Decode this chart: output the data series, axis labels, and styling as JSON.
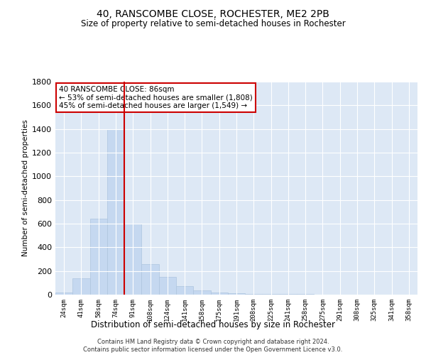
{
  "title1": "40, RANSCOMBE CLOSE, ROCHESTER, ME2 2PB",
  "title2": "Size of property relative to semi-detached houses in Rochester",
  "xlabel": "Distribution of semi-detached houses by size in Rochester",
  "ylabel": "Number of semi-detached properties",
  "categories": [
    "24sqm",
    "41sqm",
    "58sqm",
    "74sqm",
    "91sqm",
    "108sqm",
    "124sqm",
    "141sqm",
    "158sqm",
    "175sqm",
    "191sqm",
    "208sqm",
    "225sqm",
    "241sqm",
    "258sqm",
    "275sqm",
    "291sqm",
    "308sqm",
    "325sqm",
    "341sqm",
    "358sqm"
  ],
  "values": [
    20,
    140,
    640,
    1400,
    600,
    260,
    150,
    70,
    35,
    20,
    15,
    5,
    5,
    5,
    5,
    2,
    2,
    2,
    2,
    2,
    2
  ],
  "bar_color": "#c5d8f0",
  "bar_edge_color": "#adc4de",
  "vline_color": "#cc0000",
  "annotation_title": "40 RANSCOMBE CLOSE: 86sqm",
  "annotation_line1": "← 53% of semi-detached houses are smaller (1,808)",
  "annotation_line2": "45% of semi-detached houses are larger (1,549) →",
  "annotation_box_color": "#ffffff",
  "annotation_box_edge": "#cc0000",
  "ylim": [
    0,
    1800
  ],
  "yticks": [
    0,
    200,
    400,
    600,
    800,
    1000,
    1200,
    1400,
    1600,
    1800
  ],
  "background_color": "#dde8f5",
  "footer1": "Contains HM Land Registry data © Crown copyright and database right 2024.",
  "footer2": "Contains public sector information licensed under the Open Government Licence v3.0."
}
